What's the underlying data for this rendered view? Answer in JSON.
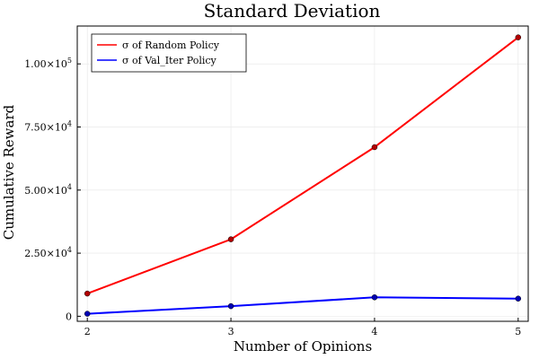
{
  "chart_data": {
    "type": "line",
    "title": "Standard Deviation",
    "xlabel": "Number of Opinions",
    "ylabel": "Cumulative Reward",
    "x": [
      2,
      3,
      4,
      5
    ],
    "xlim": [
      1.93,
      5.07
    ],
    "ylim": [
      -2000,
      115000
    ],
    "grid": true,
    "legend_position": "top-left",
    "x_ticks": [
      {
        "value": 2,
        "label": "2"
      },
      {
        "value": 3,
        "label": "3"
      },
      {
        "value": 4,
        "label": "4"
      },
      {
        "value": 5,
        "label": "5"
      }
    ],
    "y_ticks": [
      {
        "value": 0,
        "mantissa": "0",
        "exp": ""
      },
      {
        "value": 25000,
        "mantissa": "2.50×10",
        "exp": "4"
      },
      {
        "value": 50000,
        "mantissa": "5.00×10",
        "exp": "4"
      },
      {
        "value": 75000,
        "mantissa": "7.50×10",
        "exp": "4"
      },
      {
        "value": 100000,
        "mantissa": "1.00×10",
        "exp": "5"
      }
    ],
    "series": [
      {
        "name": "σ of Random Policy",
        "color": "#ff0000",
        "marker_color": "#b30000",
        "values": [
          9000,
          30500,
          67000,
          110500
        ]
      },
      {
        "name": "σ of Val_Iter Policy",
        "color": "#0000ff",
        "marker_color": "#0000b3",
        "values": [
          1000,
          4000,
          7500,
          7000
        ]
      }
    ]
  }
}
